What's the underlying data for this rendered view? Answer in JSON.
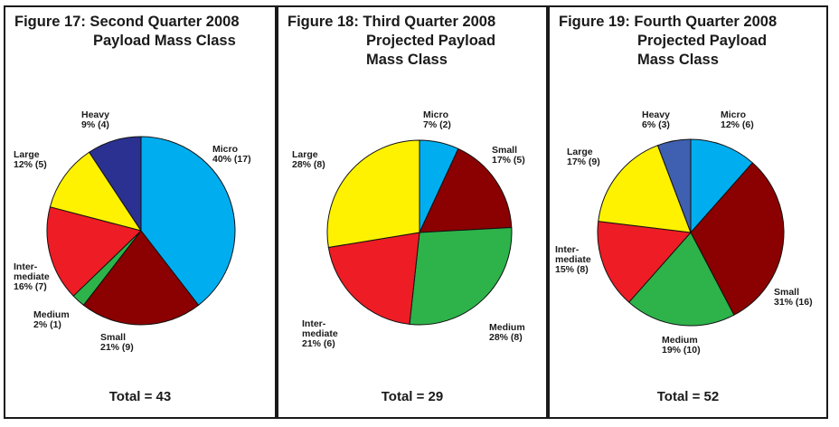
{
  "colors": {
    "Micro": "#00aeef",
    "Small": "#8b0000",
    "Medium": "#2db34a",
    "Intermediate": "#ee1c24",
    "Large": "#fff200",
    "Heavy": "#2b3190",
    "Heavy_q4": "#3f5fb0"
  },
  "chart_data": [
    {
      "type": "pie",
      "title_lines": [
        "Figure 17: Second Quarter 2008",
        "Payload Mass Class",
        ""
      ],
      "total_label": "Total = 43",
      "slices": [
        {
          "name": "Micro",
          "label_lines": [
            "Micro",
            "40% (17)"
          ],
          "count": 17,
          "percent": 40
        },
        {
          "name": "Small",
          "label_lines": [
            "Small",
            "21% (9)"
          ],
          "count": 9,
          "percent": 21
        },
        {
          "name": "Medium",
          "label_lines": [
            "Medium",
            "2% (1)"
          ],
          "count": 1,
          "percent": 2
        },
        {
          "name": "Intermediate",
          "label_lines": [
            "Inter-",
            "mediate",
            "16% (7)"
          ],
          "count": 7,
          "percent": 16
        },
        {
          "name": "Large",
          "label_lines": [
            "Large",
            "12% (5)"
          ],
          "count": 5,
          "percent": 12
        },
        {
          "name": "Heavy",
          "label_lines": [
            "Heavy",
            "9% (4)"
          ],
          "count": 4,
          "percent": 9
        }
      ]
    },
    {
      "type": "pie",
      "title_lines": [
        "Figure 18: Third Quarter 2008",
        "Projected Payload",
        "Mass Class"
      ],
      "total_label": "Total = 29",
      "slices": [
        {
          "name": "Micro",
          "label_lines": [
            "Micro",
            "7% (2)"
          ],
          "count": 2,
          "percent": 7
        },
        {
          "name": "Small",
          "label_lines": [
            "Small",
            "17% (5)"
          ],
          "count": 5,
          "percent": 17
        },
        {
          "name": "Medium",
          "label_lines": [
            "Medium",
            "28% (8)"
          ],
          "count": 8,
          "percent": 28
        },
        {
          "name": "Intermediate",
          "label_lines": [
            "Inter-",
            "mediate",
            "21% (6)"
          ],
          "count": 6,
          "percent": 21
        },
        {
          "name": "Large",
          "label_lines": [
            "Large",
            "28% (8)"
          ],
          "count": 8,
          "percent": 28
        }
      ]
    },
    {
      "type": "pie",
      "title_lines": [
        "Figure 19: Fourth Quarter 2008",
        "Projected Payload",
        "Mass Class"
      ],
      "total_label": "Total = 52",
      "slices": [
        {
          "name": "Micro",
          "label_lines": [
            "Micro",
            "12% (6)"
          ],
          "count": 6,
          "percent": 12
        },
        {
          "name": "Small",
          "label_lines": [
            "Small",
            "31% (16)"
          ],
          "count": 16,
          "percent": 31
        },
        {
          "name": "Medium",
          "label_lines": [
            "Medium",
            "19% (10)"
          ],
          "count": 10,
          "percent": 19
        },
        {
          "name": "Intermediate",
          "label_lines": [
            "Inter-",
            "mediate",
            "15% (8)"
          ],
          "count": 8,
          "percent": 15
        },
        {
          "name": "Large",
          "label_lines": [
            "Large",
            "17% (9)"
          ],
          "count": 9,
          "percent": 17
        },
        {
          "name": "Heavy",
          "label_lines": [
            "Heavy",
            "6% (3)"
          ],
          "count": 3,
          "percent": 6
        }
      ]
    }
  ]
}
